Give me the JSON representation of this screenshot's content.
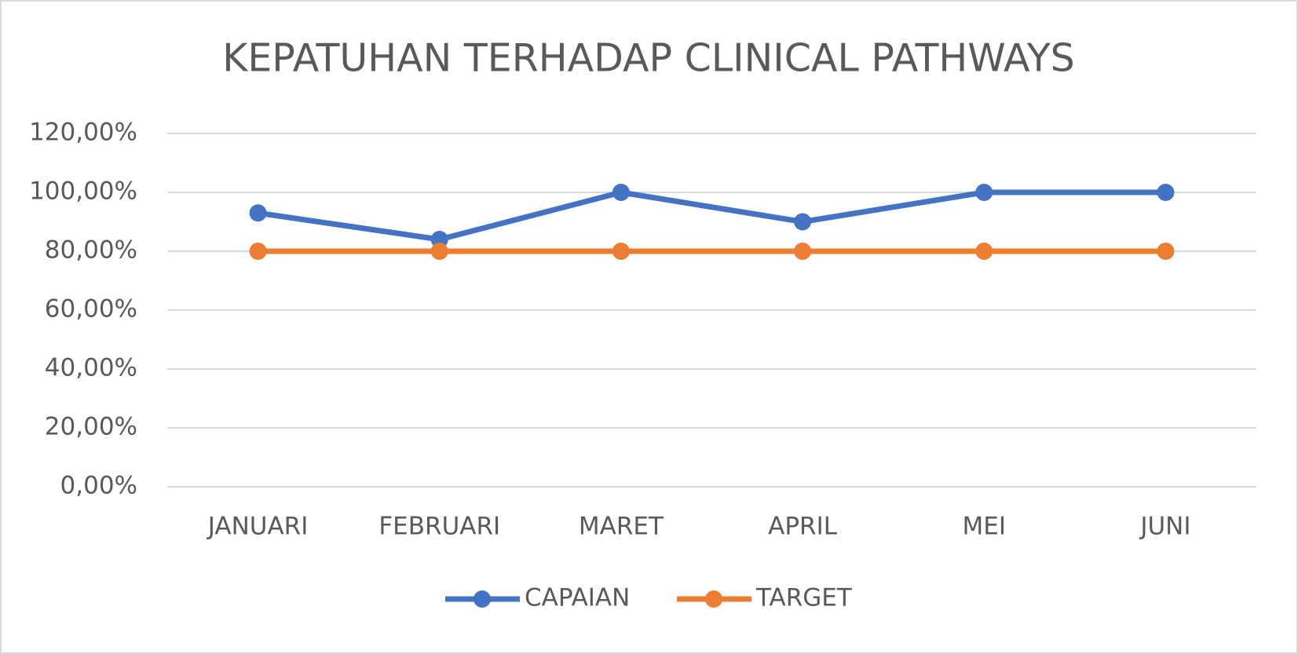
{
  "chart_data": {
    "type": "line",
    "title": "KEPATUHAN TERHADAP CLINICAL PATHWAYS",
    "categories": [
      "JANUARI",
      "FEBRUARI",
      "MARET",
      "APRIL",
      "MEI",
      "JUNI"
    ],
    "series": [
      {
        "name": "CAPAIAN",
        "color": "#4472c4",
        "values": [
          93,
          84,
          100,
          90,
          100,
          100
        ]
      },
      {
        "name": "TARGET",
        "color": "#ed7d31",
        "values": [
          80,
          80,
          80,
          80,
          80,
          80
        ]
      }
    ],
    "ylim": [
      0,
      120
    ],
    "yticks": [
      {
        "value": 0,
        "label": "0,00%"
      },
      {
        "value": 20,
        "label": "20,00%"
      },
      {
        "value": 40,
        "label": "40,00%"
      },
      {
        "value": 60,
        "label": "60,00%"
      },
      {
        "value": 80,
        "label": "80,00%"
      },
      {
        "value": 100,
        "label": "100,00%"
      },
      {
        "value": 120,
        "label": "120,00%"
      }
    ],
    "grid": true,
    "legend": "bottom"
  }
}
